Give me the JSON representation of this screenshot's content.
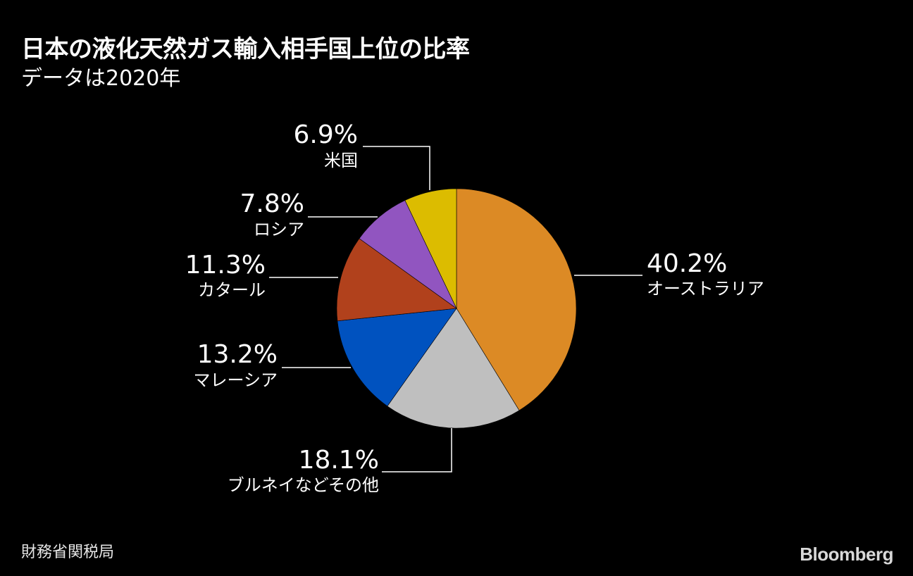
{
  "header": {
    "title": "日本の液化天然ガス輸入相手国上位の比率",
    "subtitle": "データは2020年"
  },
  "footer": {
    "source": "財務省関税局",
    "brand": "Bloomberg"
  },
  "chart_data": {
    "type": "pie",
    "title": "日本の液化天然ガス輸入相手国上位の比率",
    "subtitle": "データは2020年",
    "slices": [
      {
        "label": "オーストラリア",
        "value": 40.2,
        "value_label": "40.2%",
        "color": "#dc8a25"
      },
      {
        "label": "ブルネイなどその他",
        "value": 18.1,
        "value_label": "18.1%",
        "color": "#bfbfbf"
      },
      {
        "label": "マレーシア",
        "value": 13.2,
        "value_label": "13.2%",
        "color": "#0052bf"
      },
      {
        "label": "カタール",
        "value": 11.3,
        "value_label": "11.3%",
        "color": "#b1411c"
      },
      {
        "label": "ロシア",
        "value": 7.8,
        "value_label": "7.8%",
        "color": "#9155c0"
      },
      {
        "label": "米国",
        "value": 6.9,
        "value_label": "6.9%",
        "color": "#dcbc00"
      }
    ]
  }
}
